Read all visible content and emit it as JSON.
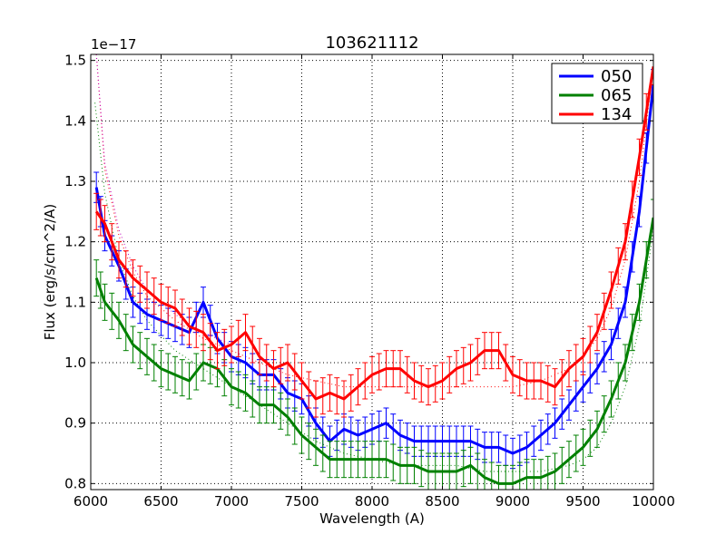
{
  "chart_data": {
    "type": "line",
    "title": "103621112",
    "xlabel": "Wavelength (A)",
    "ylabel": "Flux (erg/s/cm^2/A)",
    "offset_label": "1e−17",
    "xlim": [
      6000,
      10000
    ],
    "ylim": [
      0.79,
      1.51
    ],
    "xticks": [
      6000,
      6500,
      7000,
      7500,
      8000,
      8500,
      9000,
      9500,
      10000
    ],
    "xtick_labels": [
      "6000",
      "6500",
      "7000",
      "7500",
      "8000",
      "8500",
      "9000",
      "9500",
      "10000"
    ],
    "yticks": [
      0.8,
      0.9,
      1.0,
      1.1,
      1.2,
      1.3,
      1.4,
      1.5
    ],
    "ytick_labels": [
      "0.8",
      "0.9",
      "1.0",
      "1.1",
      "1.2",
      "1.3",
      "1.4",
      "1.5"
    ],
    "grid": true,
    "legend_position": "top-right",
    "colors": {
      "050": "#0000ff",
      "065": "#008000",
      "134": "#ff0000",
      "fit_magenta": "#bf00bf"
    },
    "series": [
      {
        "name": "050",
        "color": "#0000ff",
        "error": 0.025,
        "x": [
          6040,
          6100,
          6200,
          6300,
          6400,
          6500,
          6600,
          6700,
          6800,
          6900,
          7000,
          7100,
          7200,
          7300,
          7400,
          7500,
          7600,
          7700,
          7800,
          7900,
          8000,
          8100,
          8200,
          8300,
          8400,
          8500,
          8600,
          8700,
          8800,
          8900,
          9000,
          9100,
          9200,
          9300,
          9400,
          9500,
          9600,
          9700,
          9800,
          9900,
          10000
        ],
        "y": [
          1.29,
          1.21,
          1.16,
          1.1,
          1.08,
          1.07,
          1.06,
          1.05,
          1.1,
          1.04,
          1.01,
          1.0,
          0.98,
          0.98,
          0.95,
          0.94,
          0.9,
          0.87,
          0.89,
          0.88,
          0.89,
          0.9,
          0.88,
          0.87,
          0.87,
          0.87,
          0.87,
          0.87,
          0.86,
          0.86,
          0.85,
          0.86,
          0.88,
          0.9,
          0.93,
          0.96,
          0.99,
          1.03,
          1.1,
          1.25,
          1.46
        ]
      },
      {
        "name": "065",
        "color": "#008000",
        "error": 0.03,
        "x": [
          6040,
          6100,
          6200,
          6300,
          6400,
          6500,
          6600,
          6700,
          6800,
          6900,
          7000,
          7100,
          7200,
          7300,
          7400,
          7500,
          7600,
          7700,
          7800,
          7900,
          8000,
          8100,
          8200,
          8300,
          8400,
          8500,
          8600,
          8700,
          8800,
          8900,
          9000,
          9100,
          9200,
          9300,
          9400,
          9500,
          9600,
          9700,
          9800,
          9900,
          10000
        ],
        "y": [
          1.14,
          1.1,
          1.07,
          1.03,
          1.01,
          0.99,
          0.98,
          0.97,
          1.0,
          0.99,
          0.96,
          0.95,
          0.93,
          0.93,
          0.91,
          0.88,
          0.86,
          0.84,
          0.84,
          0.84,
          0.84,
          0.84,
          0.83,
          0.83,
          0.82,
          0.82,
          0.82,
          0.83,
          0.81,
          0.8,
          0.8,
          0.81,
          0.81,
          0.82,
          0.84,
          0.86,
          0.89,
          0.94,
          1.0,
          1.1,
          1.24
        ]
      },
      {
        "name": "134",
        "color": "#ff0000",
        "error": 0.03,
        "x": [
          6040,
          6100,
          6200,
          6300,
          6400,
          6500,
          6600,
          6700,
          6800,
          6900,
          7000,
          7100,
          7200,
          7300,
          7400,
          7500,
          7600,
          7700,
          7800,
          7900,
          8000,
          8100,
          8200,
          8300,
          8400,
          8500,
          8600,
          8700,
          8800,
          8900,
          9000,
          9100,
          9200,
          9300,
          9400,
          9500,
          9600,
          9700,
          9800,
          9900,
          10000
        ],
        "y": [
          1.25,
          1.23,
          1.17,
          1.14,
          1.12,
          1.1,
          1.09,
          1.06,
          1.05,
          1.02,
          1.03,
          1.05,
          1.01,
          0.99,
          1.0,
          0.97,
          0.94,
          0.95,
          0.94,
          0.96,
          0.98,
          0.99,
          0.99,
          0.97,
          0.96,
          0.97,
          0.99,
          1.0,
          1.02,
          1.02,
          0.98,
          0.97,
          0.97,
          0.96,
          0.99,
          1.01,
          1.05,
          1.12,
          1.2,
          1.34,
          1.49
        ]
      }
    ],
    "fit_lines": [
      {
        "color": "#ff0000",
        "x": [
          6040,
          6100,
          6200,
          6300,
          6400,
          6600,
          6800,
          7000,
          7200,
          7400,
          7600,
          7800,
          8000,
          8200,
          8400,
          8600,
          8800,
          9000,
          9200,
          9400,
          9500,
          9600,
          9700,
          9800,
          9900,
          10000
        ],
        "y": [
          1.51,
          1.32,
          1.21,
          1.15,
          1.11,
          1.07,
          1.04,
          1.02,
          1.0,
          0.98,
          0.97,
          0.96,
          0.96,
          0.96,
          0.96,
          0.96,
          0.96,
          0.96,
          0.97,
          0.99,
          1.01,
          1.04,
          1.09,
          1.17,
          1.3,
          1.49
        ]
      },
      {
        "color": "#bf00bf",
        "x": [
          6040,
          6100,
          6200,
          6300,
          6400,
          6600,
          6800,
          7000
        ],
        "y": [
          1.51,
          1.33,
          1.22,
          1.16,
          1.12,
          1.08,
          1.05,
          1.03
        ]
      },
      {
        "color": "#008000",
        "x": [
          6030,
          6100,
          6200,
          6300,
          6400,
          6600,
          6800,
          7000,
          7200,
          7400,
          7600,
          7800,
          8000,
          8200,
          8400,
          8600,
          8800,
          9000,
          9200,
          9400,
          9500,
          9600,
          9700,
          9800,
          9900,
          10000
        ],
        "y": [
          1.43,
          1.28,
          1.17,
          1.11,
          1.07,
          1.02,
          0.99,
          0.96,
          0.93,
          0.9,
          0.87,
          0.85,
          0.84,
          0.83,
          0.83,
          0.83,
          0.82,
          0.82,
          0.82,
          0.83,
          0.84,
          0.86,
          0.9,
          0.96,
          1.06,
          1.22
        ]
      }
    ]
  }
}
